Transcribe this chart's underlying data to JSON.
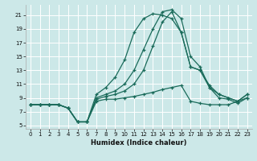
{
  "xlabel": "Humidex (Indice chaleur)",
  "background_color": "#cce8e8",
  "grid_color": "#ffffff",
  "line_color": "#1a6b5a",
  "xlim": [
    -0.5,
    23.5
  ],
  "ylim": [
    4.5,
    22.5
  ],
  "xticks": [
    0,
    1,
    2,
    3,
    4,
    5,
    6,
    7,
    8,
    9,
    10,
    11,
    12,
    13,
    14,
    15,
    16,
    17,
    18,
    19,
    20,
    21,
    22,
    23
  ],
  "yticks": [
    5,
    7,
    9,
    11,
    13,
    15,
    17,
    19,
    21
  ],
  "curve1": [
    8.0,
    8.0,
    8.0,
    8.0,
    7.5,
    5.5,
    5.5,
    8.5,
    8.8,
    8.8,
    9.0,
    9.2,
    9.5,
    9.8,
    10.2,
    10.5,
    10.8,
    8.5,
    8.2,
    8.0,
    8.0,
    8.0,
    8.5,
    9.0
  ],
  "curve2": [
    8.0,
    8.0,
    8.0,
    8.0,
    7.5,
    5.5,
    5.5,
    8.8,
    9.2,
    9.5,
    10.0,
    11.0,
    13.0,
    16.5,
    20.0,
    21.5,
    18.5,
    13.5,
    13.0,
    10.8,
    9.5,
    9.0,
    8.5,
    9.5
  ],
  "curve3": [
    8.0,
    8.0,
    8.0,
    8.0,
    7.5,
    5.5,
    5.5,
    9.0,
    9.5,
    10.0,
    11.0,
    13.0,
    16.0,
    19.0,
    21.5,
    21.8,
    20.5,
    15.0,
    13.5,
    10.5,
    9.5,
    9.0,
    8.5,
    9.5
  ],
  "curve4": [
    8.0,
    8.0,
    8.0,
    8.0,
    7.5,
    5.5,
    5.5,
    9.5,
    10.5,
    12.0,
    14.5,
    18.5,
    20.5,
    21.2,
    21.0,
    20.5,
    18.5,
    13.5,
    13.0,
    10.5,
    9.0,
    8.8,
    8.2,
    9.0
  ]
}
